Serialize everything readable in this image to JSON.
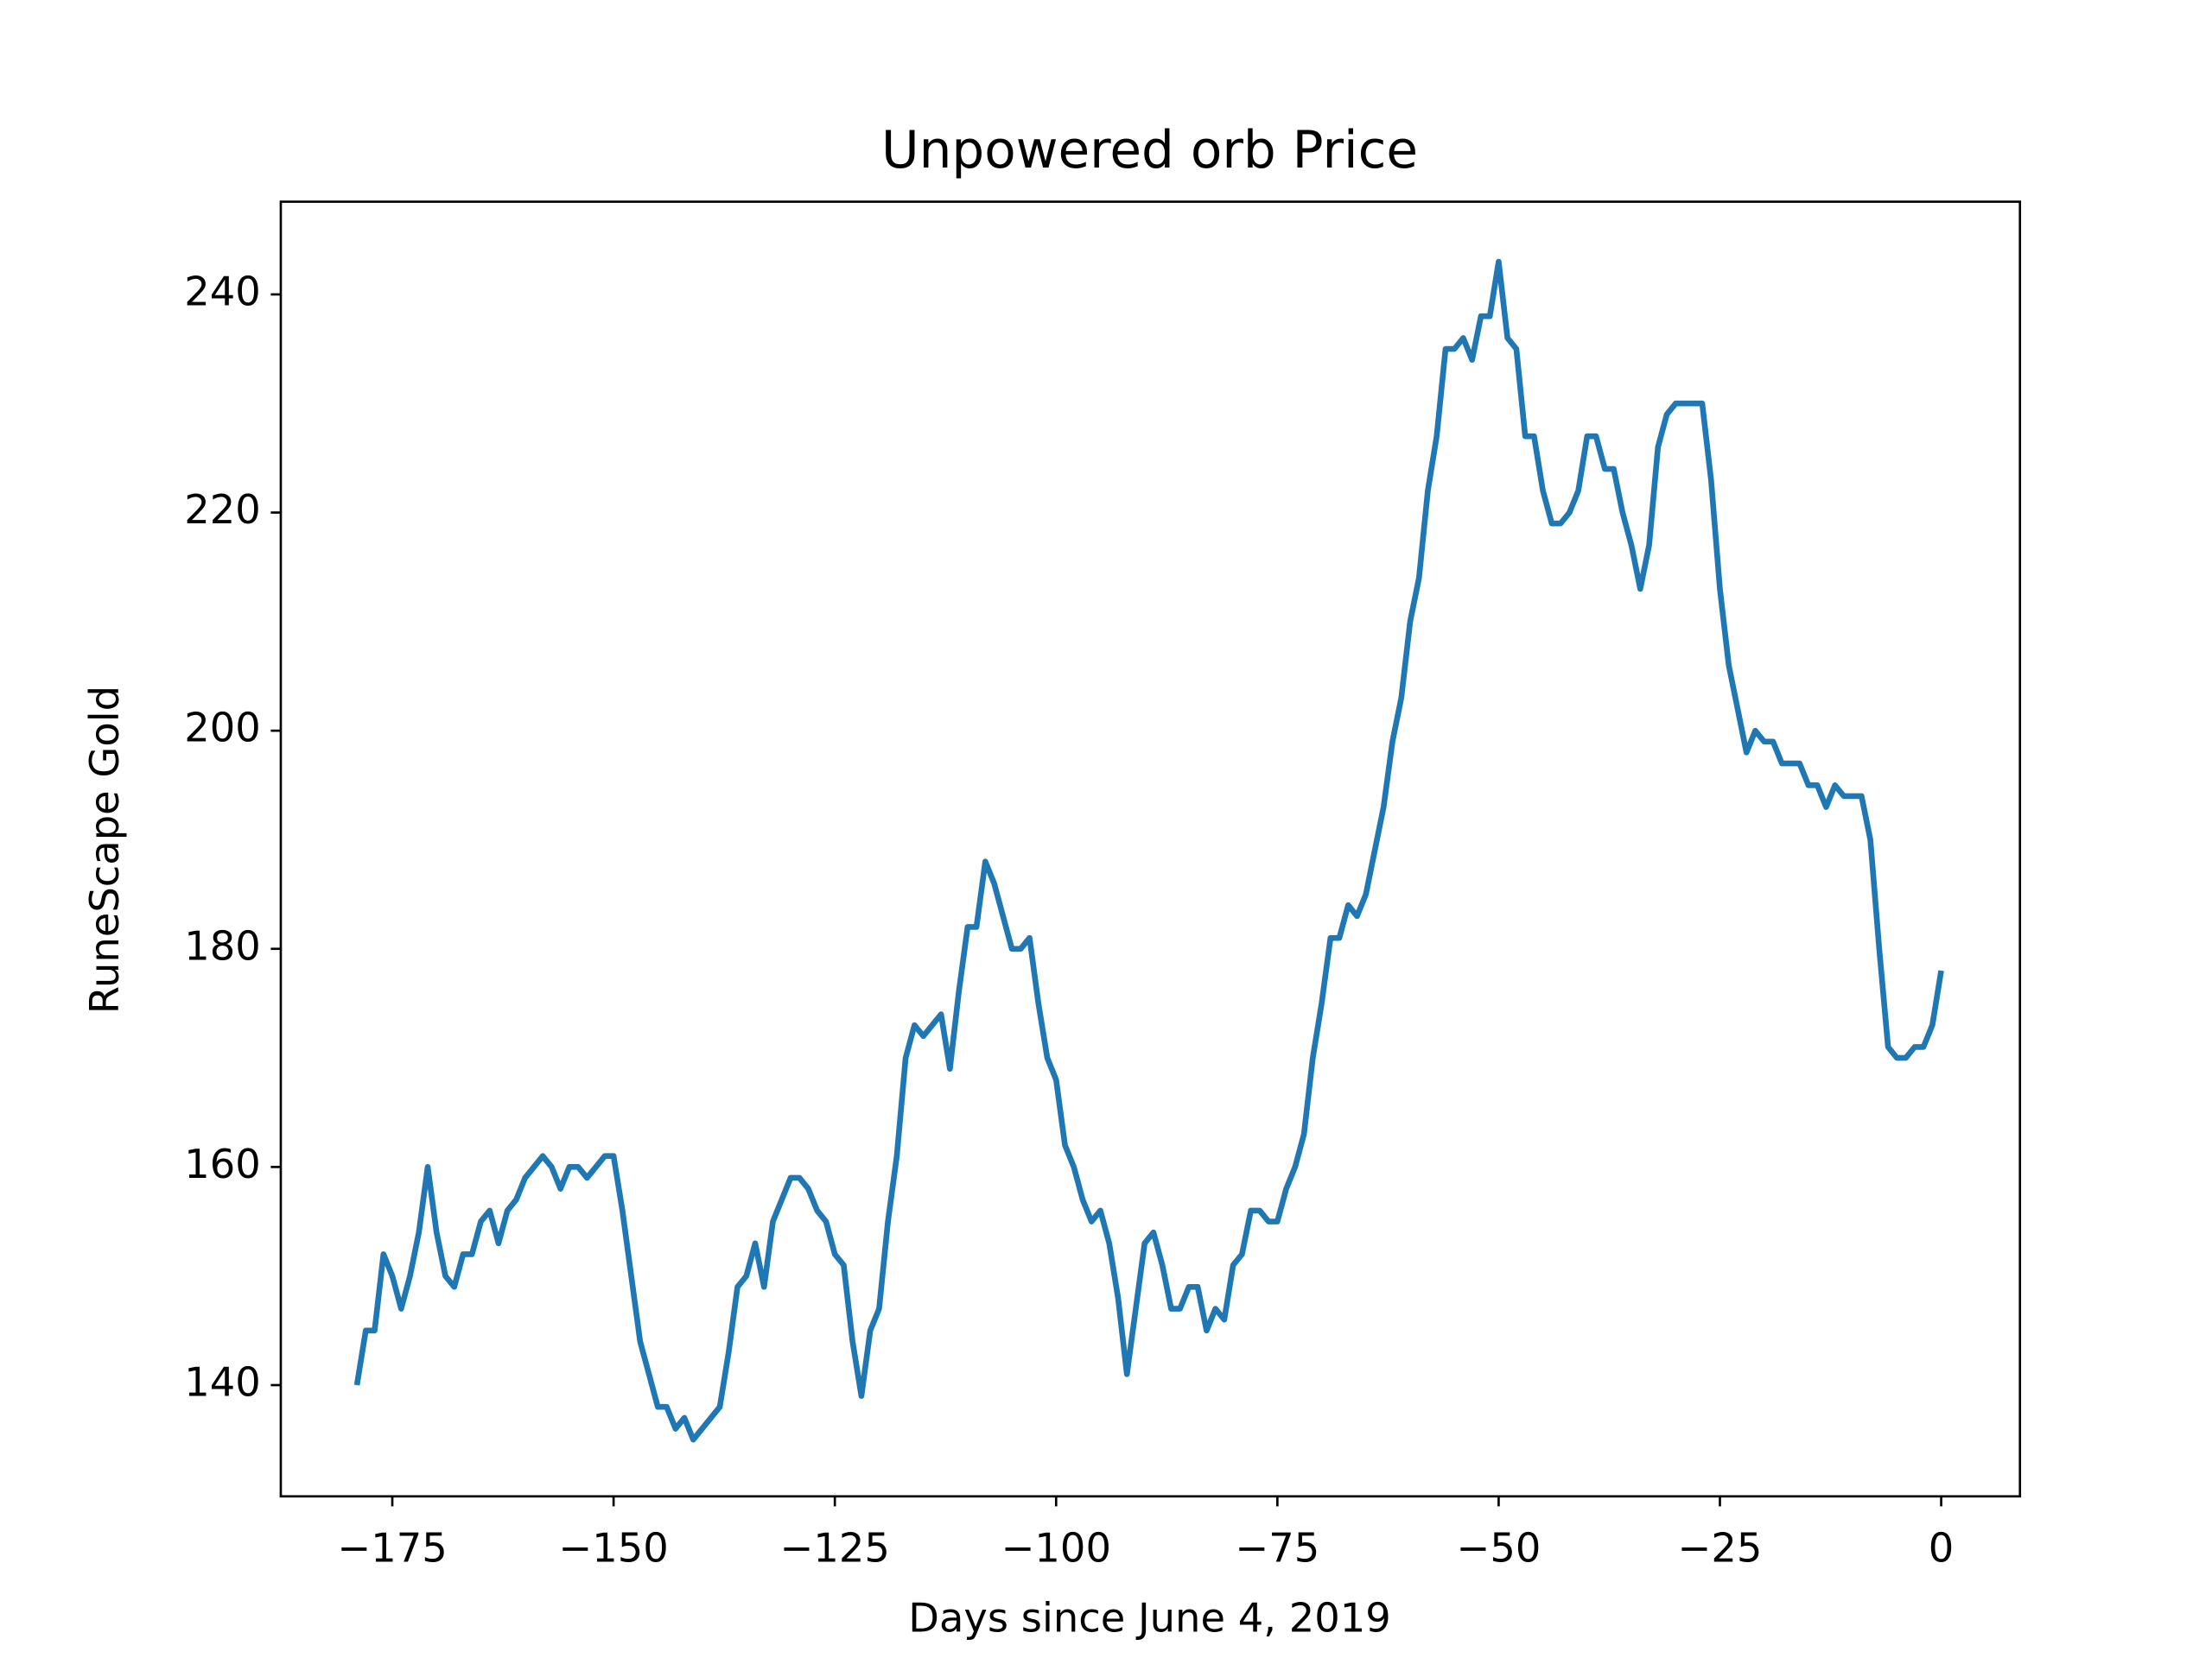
{
  "chart_data": {
    "type": "line",
    "title": "Unpowered orb Price",
    "x_label": "Days since June 4, 2019",
    "y_label": "RuneScape Gold",
    "x": [
      -179,
      -178,
      -177,
      -176,
      -175,
      -174,
      -173,
      -172,
      -171,
      -170,
      -169,
      -168,
      -167,
      -166,
      -165,
      -164,
      -163,
      -162,
      -161,
      -160,
      -159,
      -158,
      -157,
      -156,
      -155,
      -154,
      -153,
      -152,
      -151,
      -150,
      -149,
      -148,
      -147,
      -146,
      -145,
      -144,
      -143,
      -142,
      -141,
      -140,
      -139,
      -138,
      -137,
      -136,
      -135,
      -134,
      -133,
      -132,
      -131,
      -130,
      -129,
      -128,
      -127,
      -126,
      -125,
      -124,
      -123,
      -122,
      -121,
      -120,
      -119,
      -118,
      -117,
      -116,
      -115,
      -114,
      -113,
      -112,
      -111,
      -110,
      -109,
      -108,
      -107,
      -106,
      -105,
      -104,
      -103,
      -102,
      -101,
      -100,
      -99,
      -98,
      -97,
      -96,
      -95,
      -94,
      -93,
      -92,
      -91,
      -90,
      -89,
      -88,
      -87,
      -86,
      -85,
      -84,
      -83,
      -82,
      -81,
      -80,
      -79,
      -78,
      -77,
      -76,
      -75,
      -74,
      -73,
      -72,
      -71,
      -70,
      -69,
      -68,
      -67,
      -66,
      -65,
      -64,
      -63,
      -62,
      -61,
      -60,
      -59,
      -58,
      -57,
      -56,
      -55,
      -54,
      -53,
      -52,
      -51,
      -50,
      -49,
      -48,
      -47,
      -46,
      -45,
      -44,
      -43,
      -42,
      -41,
      -40,
      -39,
      -38,
      -37,
      -36,
      -35,
      -34,
      -33,
      -32,
      -31,
      -30,
      -29,
      -28,
      -27,
      -26,
      -25,
      -24,
      -23,
      -22,
      -21,
      -20,
      -19,
      -18,
      -17,
      -16,
      -15,
      -14,
      -13,
      -12,
      -11,
      -10,
      -9,
      -8,
      -7,
      -6,
      -5,
      -4,
      -3,
      -2,
      -1,
      0
    ],
    "series": [
      {
        "name": "Price",
        "color": "#1f77b4",
        "values": [
          140,
          145,
          145,
          152,
          150,
          147,
          150,
          154,
          160,
          154,
          150,
          149,
          152,
          152,
          155,
          156,
          153,
          156,
          157,
          159,
          160,
          161,
          160,
          158,
          160,
          160,
          159,
          160,
          161,
          161,
          156,
          150,
          144,
          141,
          138,
          138,
          136,
          137,
          135,
          136,
          137,
          138,
          143,
          149,
          150,
          153,
          149,
          155,
          157,
          159,
          159,
          158,
          156,
          155,
          152,
          151,
          144,
          139,
          145,
          147,
          155,
          161,
          170,
          173,
          172,
          173,
          174,
          169,
          176,
          182,
          182,
          188,
          186,
          183,
          180,
          180,
          181,
          175,
          170,
          168,
          162,
          160,
          157,
          155,
          156,
          153,
          148,
          141,
          147,
          153,
          154,
          151,
          147,
          147,
          149,
          149,
          145,
          147,
          146,
          151,
          152,
          156,
          156,
          155,
          155,
          158,
          160,
          163,
          170,
          175,
          181,
          181,
          184,
          183,
          185,
          189,
          193,
          199,
          203,
          210,
          214,
          222,
          227,
          235,
          235,
          236,
          234,
          238,
          238,
          243,
          236,
          235,
          227,
          227,
          222,
          219,
          219,
          220,
          222,
          227,
          227,
          224,
          224,
          220,
          217,
          213,
          217,
          226,
          229,
          230,
          230,
          230,
          230,
          223,
          213,
          206,
          202,
          198,
          200,
          199,
          199,
          197,
          197,
          197,
          195,
          195,
          193,
          195,
          194,
          194,
          194,
          190,
          180,
          171,
          170,
          170,
          171,
          171,
          173,
          178
        ]
      }
    ],
    "xlim": [
      -187.6,
      8.9
    ],
    "ylim": [
      129.8,
      248.5
    ],
    "xticks": [
      {
        "value": -175,
        "label": "−175"
      },
      {
        "value": -150,
        "label": "−150"
      },
      {
        "value": -125,
        "label": "−125"
      },
      {
        "value": -100,
        "label": "−100"
      },
      {
        "value": -75,
        "label": "−75"
      },
      {
        "value": -50,
        "label": "−50"
      },
      {
        "value": -25,
        "label": "−25"
      },
      0
    ],
    "yticks": [
      140,
      160,
      180,
      200,
      220,
      240
    ]
  }
}
